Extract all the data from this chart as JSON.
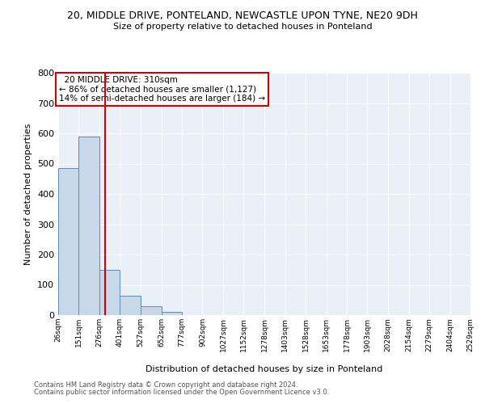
{
  "title1": "20, MIDDLE DRIVE, PONTELAND, NEWCASTLE UPON TYNE, NE20 9DH",
  "title2": "Size of property relative to detached houses in Ponteland",
  "xlabel": "Distribution of detached houses by size in Ponteland",
  "ylabel": "Number of detached properties",
  "bin_edges": [
    26,
    151,
    276,
    401,
    527,
    652,
    777,
    902,
    1027,
    1152,
    1278,
    1403,
    1528,
    1653,
    1778,
    1903,
    2028,
    2154,
    2279,
    2404,
    2529
  ],
  "bin_heights": [
    485,
    590,
    150,
    63,
    30,
    10,
    0,
    0,
    0,
    0,
    0,
    0,
    0,
    0,
    0,
    0,
    0,
    0,
    0,
    0
  ],
  "bar_color": "#c8d8e8",
  "bar_edge_color": "#5b8db8",
  "property_value": 310,
  "vline_color": "#cc0000",
  "annotation_text": "  20 MIDDLE DRIVE: 310sqm\n← 86% of detached houses are smaller (1,127)\n14% of semi-detached houses are larger (184) →",
  "annotation_box_color": "white",
  "annotation_box_edge": "#cc0000",
  "ylim": [
    0,
    800
  ],
  "yticks": [
    0,
    100,
    200,
    300,
    400,
    500,
    600,
    700,
    800
  ],
  "background_color": "#eaf0f8",
  "footer1": "Contains HM Land Registry data © Crown copyright and database right 2024.",
  "footer2": "Contains public sector information licensed under the Open Government Licence v3.0."
}
